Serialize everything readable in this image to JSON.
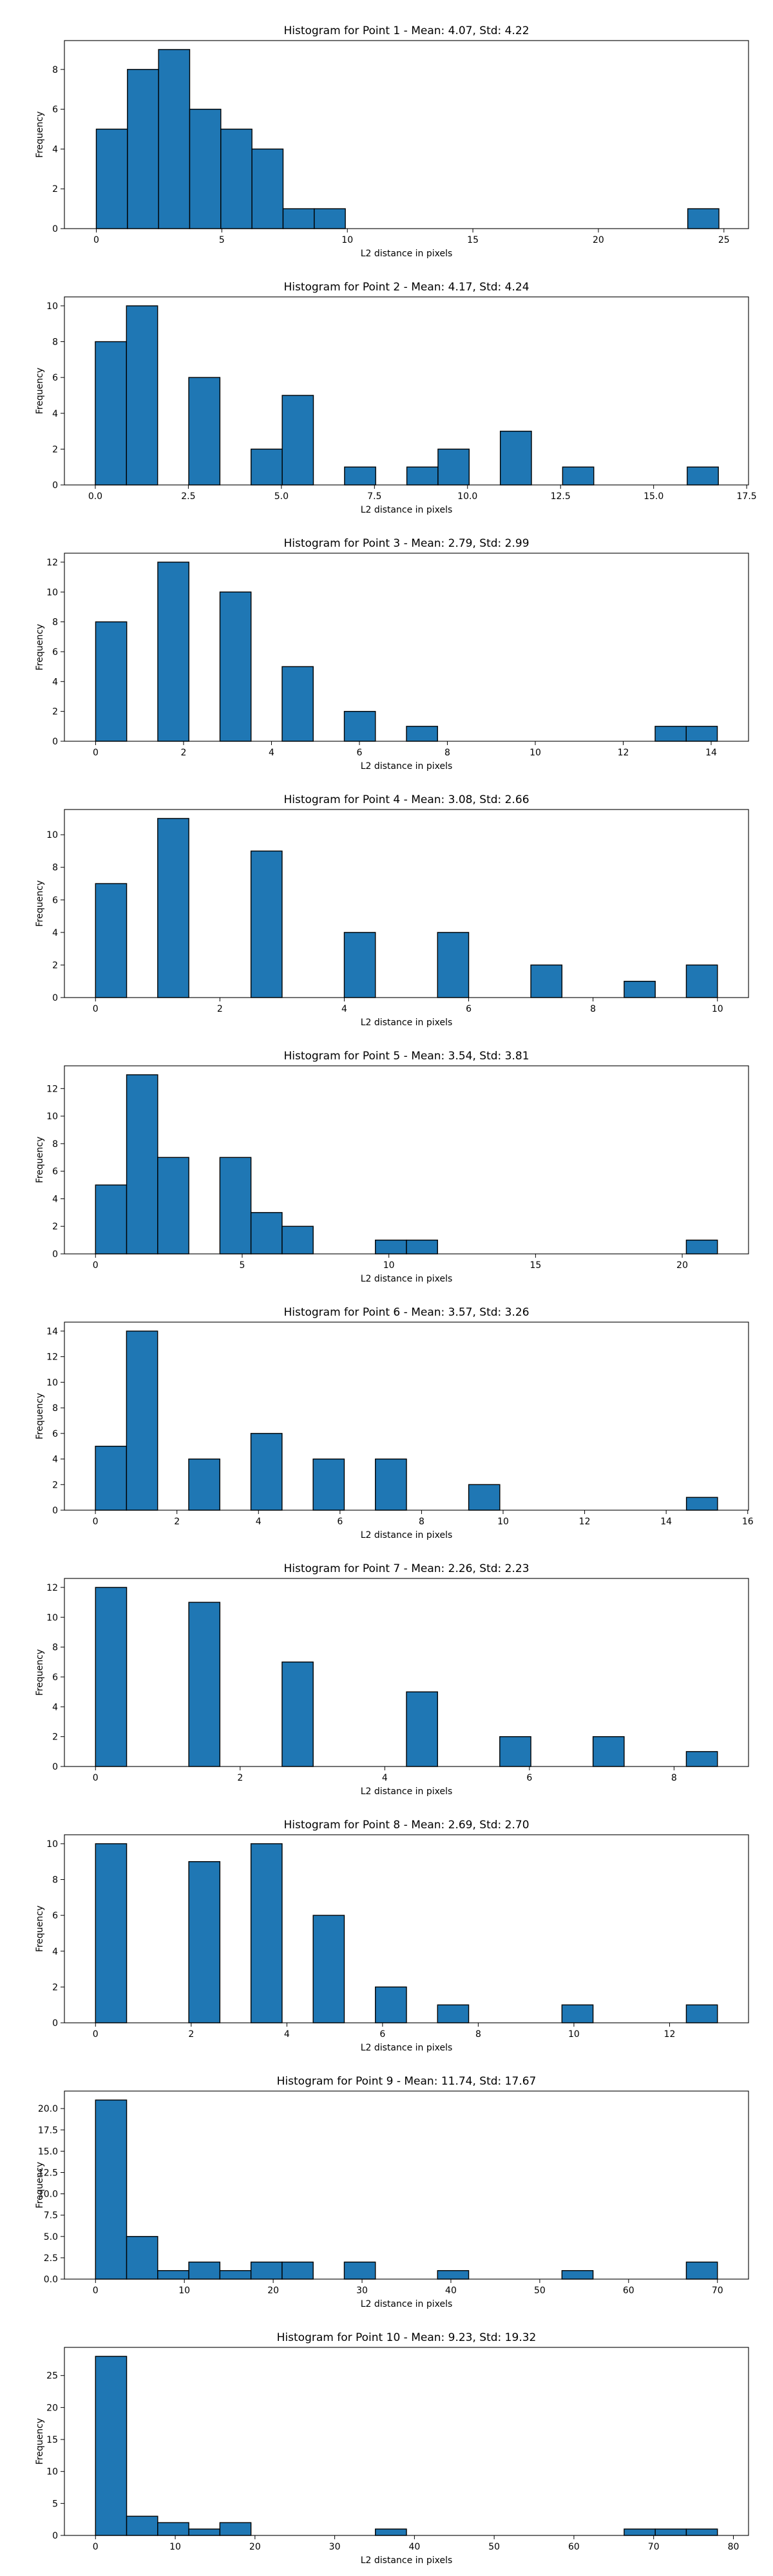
{
  "figure": {
    "bar_color": "#1f77b4",
    "edge_color": "#000000"
  },
  "chart_data": [
    {
      "type": "bar",
      "title": "Histogram for Point 1 - Mean: 4.07, Std: 4.22",
      "xlabel": "L2 distance in pixels",
      "ylabel": "Frequency",
      "xlim": [
        -1.27,
        25.98
      ],
      "ylim": [
        0,
        9.45
      ],
      "xticks": [
        0,
        5,
        10,
        15,
        20,
        25
      ],
      "xtick_labels": [
        "0",
        "5",
        "10",
        "15",
        "20",
        "25"
      ],
      "yticks": [
        0,
        2,
        4,
        6,
        8
      ],
      "ytick_labels": [
        "0",
        "2",
        "4",
        "6",
        "8"
      ],
      "bin_edges": [
        0,
        1.24,
        2.48,
        3.72,
        4.96,
        6.2,
        7.44,
        8.68,
        9.92,
        11.16,
        12.4,
        13.64,
        14.88,
        16.12,
        17.36,
        18.6,
        19.84,
        21.08,
        22.32,
        23.56,
        24.8
      ],
      "values": [
        5,
        8,
        9,
        6,
        5,
        4,
        1,
        1,
        0,
        0,
        0,
        0,
        0,
        0,
        0,
        0,
        0,
        0,
        0,
        1
      ]
    },
    {
      "type": "bar",
      "title": "Histogram for Point 2 - Mean: 4.17, Std: 4.24",
      "xlabel": "L2 distance in pixels",
      "ylabel": "Frequency",
      "xlim": [
        -0.83,
        17.55
      ],
      "ylim": [
        0,
        10.5
      ],
      "xticks": [
        0,
        2.5,
        5,
        7.5,
        10,
        12.5,
        15,
        17.5
      ],
      "xtick_labels": [
        "0.0",
        "2.5",
        "5.0",
        "7.5",
        "10.0",
        "12.5",
        "15.0",
        "17.5"
      ],
      "yticks": [
        0,
        2,
        4,
        6,
        8,
        10
      ],
      "ytick_labels": [
        "0",
        "2",
        "4",
        "6",
        "8",
        "10"
      ],
      "bin_edges": [
        0,
        0.837,
        1.674,
        2.511,
        3.348,
        4.185,
        5.022,
        5.859,
        6.696,
        7.533,
        8.37,
        9.207,
        10.044,
        10.881,
        11.718,
        12.555,
        13.392,
        14.229,
        15.066,
        15.903,
        16.74
      ],
      "values": [
        8,
        10,
        0,
        6,
        0,
        2,
        5,
        0,
        1,
        0,
        1,
        2,
        0,
        3,
        0,
        1,
        0,
        0,
        0,
        1
      ]
    },
    {
      "type": "bar",
      "title": "Histogram for Point 3 - Mean: 2.79, Std: 2.99",
      "xlabel": "L2 distance in pixels",
      "ylabel": "Frequency",
      "xlim": [
        -0.71,
        14.85
      ],
      "ylim": [
        0,
        12.6
      ],
      "xticks": [
        0,
        2,
        4,
        6,
        8,
        10,
        12,
        14
      ],
      "xtick_labels": [
        "0",
        "2",
        "4",
        "6",
        "8",
        "10",
        "12",
        "14"
      ],
      "yticks": [
        0,
        2,
        4,
        6,
        8,
        10,
        12
      ],
      "ytick_labels": [
        "0",
        "2",
        "4",
        "6",
        "8",
        "10",
        "12"
      ],
      "bin_edges": [
        0,
        0.707,
        1.414,
        2.121,
        2.828,
        3.535,
        4.242,
        4.949,
        5.656,
        6.363,
        7.07,
        7.777,
        8.484,
        9.191,
        9.898,
        10.605,
        11.312,
        12.019,
        12.726,
        13.433,
        14.14
      ],
      "values": [
        8,
        0,
        12,
        0,
        10,
        0,
        5,
        0,
        2,
        0,
        1,
        0,
        0,
        0,
        0,
        0,
        0,
        0,
        1,
        1
      ]
    },
    {
      "type": "bar",
      "title": "Histogram for Point 4 - Mean: 3.08, Std: 2.66",
      "xlabel": "L2 distance in pixels",
      "ylabel": "Frequency",
      "xlim": [
        -0.5,
        10.5
      ],
      "ylim": [
        0,
        11.55
      ],
      "xticks": [
        0,
        2,
        4,
        6,
        8,
        10
      ],
      "xtick_labels": [
        "0",
        "2",
        "4",
        "6",
        "8",
        "10"
      ],
      "yticks": [
        0,
        2,
        4,
        6,
        8,
        10
      ],
      "ytick_labels": [
        "0",
        "2",
        "4",
        "6",
        "8",
        "10"
      ],
      "bin_edges": [
        0,
        0.5,
        1.0,
        1.5,
        2.0,
        2.5,
        3.0,
        3.5,
        4.0,
        4.5,
        5.0,
        5.5,
        6.0,
        6.5,
        7.0,
        7.5,
        8.0,
        8.5,
        9.0,
        9.5,
        10.0
      ],
      "values": [
        7,
        0,
        11,
        0,
        0,
        9,
        0,
        0,
        4,
        0,
        0,
        4,
        0,
        0,
        2,
        0,
        0,
        1,
        0,
        2
      ]
    },
    {
      "type": "bar",
      "title": "Histogram for Point 5 - Mean: 3.54, Std: 3.81",
      "xlabel": "L2 distance in pixels",
      "ylabel": "Frequency",
      "xlim": [
        -1.06,
        22.26
      ],
      "ylim": [
        0,
        13.65
      ],
      "xticks": [
        0,
        5,
        10,
        15,
        20
      ],
      "xtick_labels": [
        "0",
        "5",
        "10",
        "15",
        "20"
      ],
      "yticks": [
        0,
        2,
        4,
        6,
        8,
        10,
        12
      ],
      "ytick_labels": [
        "0",
        "2",
        "4",
        "6",
        "8",
        "10",
        "12"
      ],
      "bin_edges": [
        0,
        1.06,
        2.12,
        3.18,
        4.24,
        5.3,
        6.36,
        7.42,
        8.48,
        9.54,
        10.6,
        11.66,
        12.72,
        13.78,
        14.84,
        15.9,
        16.96,
        18.02,
        19.08,
        20.14,
        21.2
      ],
      "values": [
        5,
        13,
        7,
        0,
        7,
        3,
        2,
        0,
        0,
        1,
        1,
        0,
        0,
        0,
        0,
        0,
        0,
        0,
        0,
        1
      ]
    },
    {
      "type": "bar",
      "title": "Histogram for Point 6 - Mean: 3.57, Std: 3.26",
      "xlabel": "L2 distance in pixels",
      "ylabel": "Frequency",
      "xlim": [
        -0.76,
        16.02
      ],
      "ylim": [
        0,
        14.7
      ],
      "xticks": [
        0,
        2,
        4,
        6,
        8,
        10,
        12,
        14,
        16
      ],
      "xtick_labels": [
        "0",
        "2",
        "4",
        "6",
        "8",
        "10",
        "12",
        "14",
        "16"
      ],
      "yticks": [
        0,
        2,
        4,
        6,
        8,
        10,
        12,
        14
      ],
      "ytick_labels": [
        "0",
        "2",
        "4",
        "6",
        "8",
        "10",
        "12",
        "14"
      ],
      "bin_edges": [
        0,
        0.763,
        1.526,
        2.289,
        3.052,
        3.815,
        4.578,
        5.341,
        6.104,
        6.867,
        7.63,
        8.393,
        9.156,
        9.919,
        10.682,
        11.445,
        12.208,
        12.971,
        13.734,
        14.497,
        15.26
      ],
      "values": [
        5,
        14,
        0,
        4,
        0,
        6,
        0,
        4,
        0,
        4,
        0,
        0,
        2,
        0,
        0,
        0,
        0,
        0,
        0,
        1
      ]
    },
    {
      "type": "bar",
      "title": "Histogram for Point 7 - Mean: 2.26, Std: 2.23",
      "xlabel": "L2 distance in pixels",
      "ylabel": "Frequency",
      "xlim": [
        -0.43,
        9.03
      ],
      "ylim": [
        0,
        12.6
      ],
      "xticks": [
        0,
        2,
        4,
        6,
        8
      ],
      "xtick_labels": [
        "0",
        "2",
        "4",
        "6",
        "8"
      ],
      "yticks": [
        0,
        2,
        4,
        6,
        8,
        10,
        12
      ],
      "ytick_labels": [
        "0",
        "2",
        "4",
        "6",
        "8",
        "10",
        "12"
      ],
      "bin_edges": [
        0,
        0.43,
        0.86,
        1.29,
        1.72,
        2.15,
        2.58,
        3.01,
        3.44,
        3.87,
        4.3,
        4.73,
        5.16,
        5.59,
        6.02,
        6.45,
        6.88,
        7.31,
        7.74,
        8.17,
        8.6
      ],
      "values": [
        12,
        0,
        0,
        11,
        0,
        0,
        7,
        0,
        0,
        0,
        5,
        0,
        0,
        2,
        0,
        0,
        2,
        0,
        0,
        1
      ]
    },
    {
      "type": "bar",
      "title": "Histogram for Point 8 - Mean: 2.69, Std: 2.70",
      "xlabel": "L2 distance in pixels",
      "ylabel": "Frequency",
      "xlim": [
        -0.65,
        13.65
      ],
      "ylim": [
        0,
        10.5
      ],
      "xticks": [
        0,
        2,
        4,
        6,
        8,
        10,
        12
      ],
      "xtick_labels": [
        "0",
        "2",
        "4",
        "6",
        "8",
        "10",
        "12"
      ],
      "yticks": [
        0,
        2,
        4,
        6,
        8,
        10
      ],
      "ytick_labels": [
        "0",
        "2",
        "4",
        "6",
        "8",
        "10"
      ],
      "bin_edges": [
        0,
        0.65,
        1.3,
        1.95,
        2.6,
        3.25,
        3.9,
        4.55,
        5.2,
        5.85,
        6.5,
        7.15,
        7.8,
        8.45,
        9.1,
        9.75,
        10.4,
        11.05,
        11.7,
        12.35,
        13.0
      ],
      "values": [
        10,
        0,
        0,
        9,
        0,
        10,
        0,
        6,
        0,
        2,
        0,
        1,
        0,
        0,
        0,
        1,
        0,
        0,
        0,
        1
      ]
    },
    {
      "type": "bar",
      "title": "Histogram for Point 9 - Mean: 11.74, Std: 17.67",
      "xlabel": "L2 distance in pixels",
      "ylabel": "Frequency",
      "xlim": [
        -3.5,
        73.5
      ],
      "ylim": [
        0,
        22.05
      ],
      "xticks": [
        0,
        10,
        20,
        30,
        40,
        50,
        60,
        70
      ],
      "xtick_labels": [
        "0",
        "10",
        "20",
        "30",
        "40",
        "50",
        "60",
        "70"
      ],
      "yticks": [
        0,
        2.5,
        5,
        7.5,
        10,
        12.5,
        15,
        17.5,
        20
      ],
      "ytick_labels": [
        "0.0",
        "2.5",
        "5.0",
        "7.5",
        "10.0",
        "12.5",
        "15.0",
        "17.5",
        "20.0"
      ],
      "bin_edges": [
        0,
        3.5,
        7.0,
        10.5,
        14.0,
        17.5,
        21.0,
        24.5,
        28.0,
        31.5,
        35.0,
        38.5,
        42.0,
        45.5,
        49.0,
        52.5,
        56.0,
        59.5,
        63.0,
        66.5,
        70.0
      ],
      "values": [
        21,
        5,
        1,
        2,
        1,
        2,
        2,
        0,
        2,
        0,
        0,
        1,
        0,
        0,
        0,
        1,
        0,
        0,
        0,
        2
      ]
    },
    {
      "type": "bar",
      "title": "Histogram for Point 10 - Mean: 9.23, Std: 19.32",
      "xlabel": "L2 distance in pixels",
      "ylabel": "Frequency",
      "xlim": [
        -3.9,
        81.9
      ],
      "ylim": [
        0,
        29.4
      ],
      "xticks": [
        0,
        10,
        20,
        30,
        40,
        50,
        60,
        70,
        80
      ],
      "xtick_labels": [
        "0",
        "10",
        "20",
        "30",
        "40",
        "50",
        "60",
        "70",
        "80"
      ],
      "yticks": [
        0,
        5,
        10,
        15,
        20,
        25
      ],
      "ytick_labels": [
        "0",
        "5",
        "10",
        "15",
        "20",
        "25"
      ],
      "bin_edges": [
        0,
        3.9,
        7.8,
        11.7,
        15.6,
        19.5,
        23.4,
        27.3,
        31.2,
        35.1,
        39.0,
        42.9,
        46.8,
        50.7,
        54.6,
        58.5,
        62.4,
        66.3,
        70.2,
        74.1,
        78.0
      ],
      "values": [
        28,
        3,
        2,
        1,
        2,
        0,
        0,
        0,
        0,
        1,
        0,
        0,
        0,
        0,
        0,
        0,
        0,
        1,
        1,
        1
      ]
    }
  ]
}
